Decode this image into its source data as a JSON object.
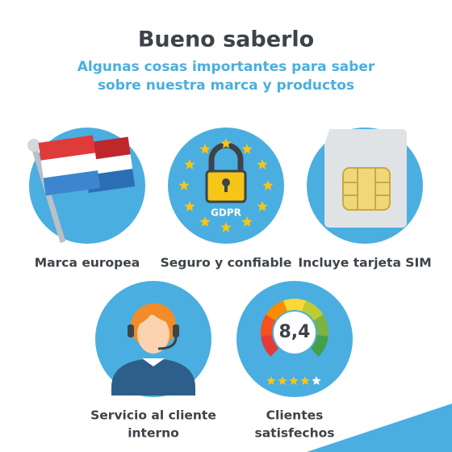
{
  "header": {
    "title": "Bueno saberlo",
    "subtitle": [
      "Algunas cosas importantes para saber",
      "sobre nuestra marca y productos"
    ]
  },
  "features": [
    {
      "label": [
        "Marca europea"
      ]
    },
    {
      "label": [
        "Seguro y confiable"
      ],
      "badge": "GDPR"
    },
    {
      "label": [
        "Incluye tarjeta SIM"
      ]
    },
    {
      "label": [
        "Servicio al cliente",
        "interno"
      ]
    },
    {
      "label": [
        "Clientes",
        "satisfechos"
      ],
      "score": "8,4"
    }
  ]
}
